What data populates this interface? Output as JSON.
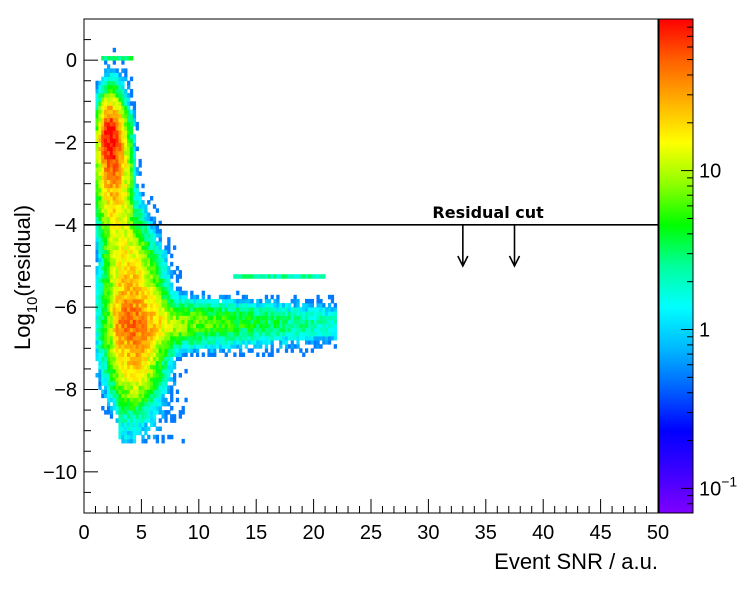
{
  "chart_data": {
    "type": "heatmap",
    "xlabel": "Event SNR / a.u.",
    "ylabel_main": "Log",
    "ylabel_sub": "10",
    "ylabel_rest": "(residual)",
    "xlim": [
      0,
      50
    ],
    "ylim": [
      -11,
      1
    ],
    "x_ticks": [
      0,
      5,
      10,
      15,
      20,
      25,
      30,
      35,
      40,
      45,
      50
    ],
    "x_tick_labels": [
      "0",
      "5",
      "10",
      "15",
      "20",
      "25",
      "30",
      "35",
      "40",
      "45",
      "50"
    ],
    "y_ticks": [
      0,
      -2,
      -4,
      -6,
      -8,
      -10
    ],
    "y_tick_labels": [
      "0",
      "−2",
      "−4",
      "−6",
      "−8",
      "−10"
    ],
    "colorbar": {
      "scale": "log",
      "range": [
        0.07,
        90
      ],
      "tick_labels": [
        {
          "value": 10,
          "label": "10"
        },
        {
          "value": 1,
          "label": "1"
        },
        {
          "value": 0.1,
          "base": "10",
          "exp": "−1"
        }
      ],
      "colors": [
        "#7f00ff",
        "#3c00ff",
        "#0000ff",
        "#0060ff",
        "#00b8ff",
        "#00ffff",
        "#00ff9c",
        "#00ff00",
        "#90ff00",
        "#ffff00",
        "#ffb000",
        "#ff6000",
        "#ff0000"
      ]
    },
    "cut_line": {
      "y": -4,
      "label": "Residual cut",
      "arrows_x": [
        33,
        37.5
      ],
      "arrow_to_y": -5
    }
  }
}
